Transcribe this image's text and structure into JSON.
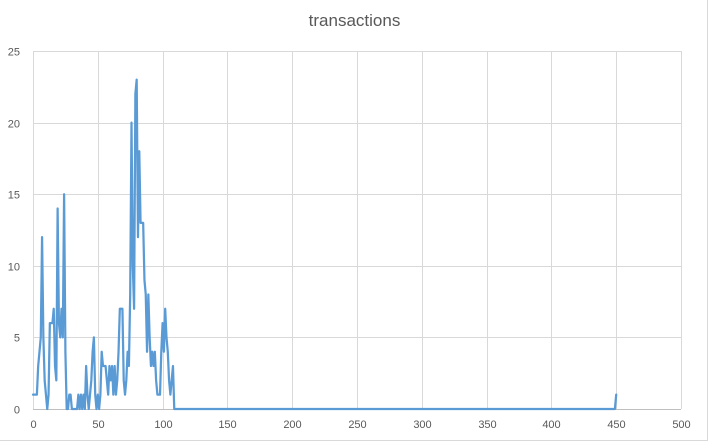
{
  "chart_data": {
    "type": "line",
    "title": "transactions",
    "xlabel": "",
    "ylabel": "",
    "xlim": [
      0,
      500
    ],
    "ylim": [
      0,
      25
    ],
    "x_ticks": [
      0,
      50,
      100,
      150,
      200,
      250,
      300,
      350,
      400,
      450,
      500
    ],
    "y_ticks": [
      0,
      5,
      10,
      15,
      20,
      25
    ],
    "grid": true,
    "legend": "none",
    "line_color": "#5b9bd5",
    "grid_color": "#d9d9d9",
    "series": [
      {
        "points": [
          [
            0,
            1
          ],
          [
            1,
            1
          ],
          [
            2,
            1
          ],
          [
            3,
            1
          ],
          [
            4,
            3
          ],
          [
            5,
            4
          ],
          [
            6,
            5
          ],
          [
            7,
            12
          ],
          [
            8,
            5
          ],
          [
            9,
            2
          ],
          [
            10,
            1
          ],
          [
            11,
            0
          ],
          [
            12,
            1
          ],
          [
            13,
            6
          ],
          [
            14,
            6
          ],
          [
            15,
            6
          ],
          [
            16,
            7
          ],
          [
            17,
            3
          ],
          [
            18,
            2
          ],
          [
            19,
            14
          ],
          [
            20,
            6
          ],
          [
            21,
            5
          ],
          [
            22,
            7
          ],
          [
            23,
            5
          ],
          [
            24,
            15
          ],
          [
            25,
            4
          ],
          [
            26,
            0
          ],
          [
            27,
            0
          ],
          [
            28,
            1
          ],
          [
            29,
            1
          ],
          [
            30,
            0
          ],
          [
            31,
            0
          ],
          [
            32,
            0
          ],
          [
            33,
            0
          ],
          [
            34,
            0
          ],
          [
            35,
            1
          ],
          [
            36,
            0
          ],
          [
            37,
            1
          ],
          [
            38,
            0
          ],
          [
            39,
            1
          ],
          [
            40,
            0
          ],
          [
            41,
            3
          ],
          [
            42,
            1
          ],
          [
            43,
            0
          ],
          [
            44,
            1
          ],
          [
            45,
            2
          ],
          [
            46,
            4
          ],
          [
            47,
            5
          ],
          [
            48,
            1
          ],
          [
            49,
            0
          ],
          [
            50,
            1
          ],
          [
            51,
            0
          ],
          [
            52,
            1
          ],
          [
            53,
            4
          ],
          [
            54,
            3
          ],
          [
            55,
            3
          ],
          [
            56,
            3
          ],
          [
            57,
            2
          ],
          [
            58,
            1
          ],
          [
            59,
            3
          ],
          [
            60,
            2
          ],
          [
            61,
            3
          ],
          [
            62,
            1
          ],
          [
            63,
            3
          ],
          [
            64,
            1
          ],
          [
            65,
            2
          ],
          [
            66,
            4
          ],
          [
            67,
            7
          ],
          [
            68,
            7
          ],
          [
            69,
            7
          ],
          [
            70,
            2
          ],
          [
            71,
            1
          ],
          [
            72,
            2
          ],
          [
            73,
            4
          ],
          [
            74,
            3
          ],
          [
            75,
            8
          ],
          [
            76,
            20
          ],
          [
            77,
            10
          ],
          [
            78,
            7
          ],
          [
            79,
            22
          ],
          [
            80,
            23
          ],
          [
            81,
            12
          ],
          [
            82,
            18
          ],
          [
            83,
            13
          ],
          [
            84,
            13
          ],
          [
            85,
            13
          ],
          [
            86,
            9
          ],
          [
            87,
            8
          ],
          [
            88,
            4
          ],
          [
            89,
            8
          ],
          [
            90,
            5
          ],
          [
            91,
            3
          ],
          [
            92,
            4
          ],
          [
            93,
            3
          ],
          [
            94,
            4
          ],
          [
            95,
            2
          ],
          [
            96,
            1
          ],
          [
            97,
            1
          ],
          [
            98,
            1
          ],
          [
            99,
            4
          ],
          [
            100,
            6
          ],
          [
            101,
            4
          ],
          [
            102,
            7
          ],
          [
            103,
            5
          ],
          [
            104,
            4
          ],
          [
            105,
            2
          ],
          [
            106,
            1
          ],
          [
            107,
            2
          ],
          [
            108,
            3
          ],
          [
            109,
            0
          ],
          [
            110,
            0
          ],
          [
            449,
            0
          ],
          [
            450,
            1
          ]
        ]
      }
    ]
  }
}
